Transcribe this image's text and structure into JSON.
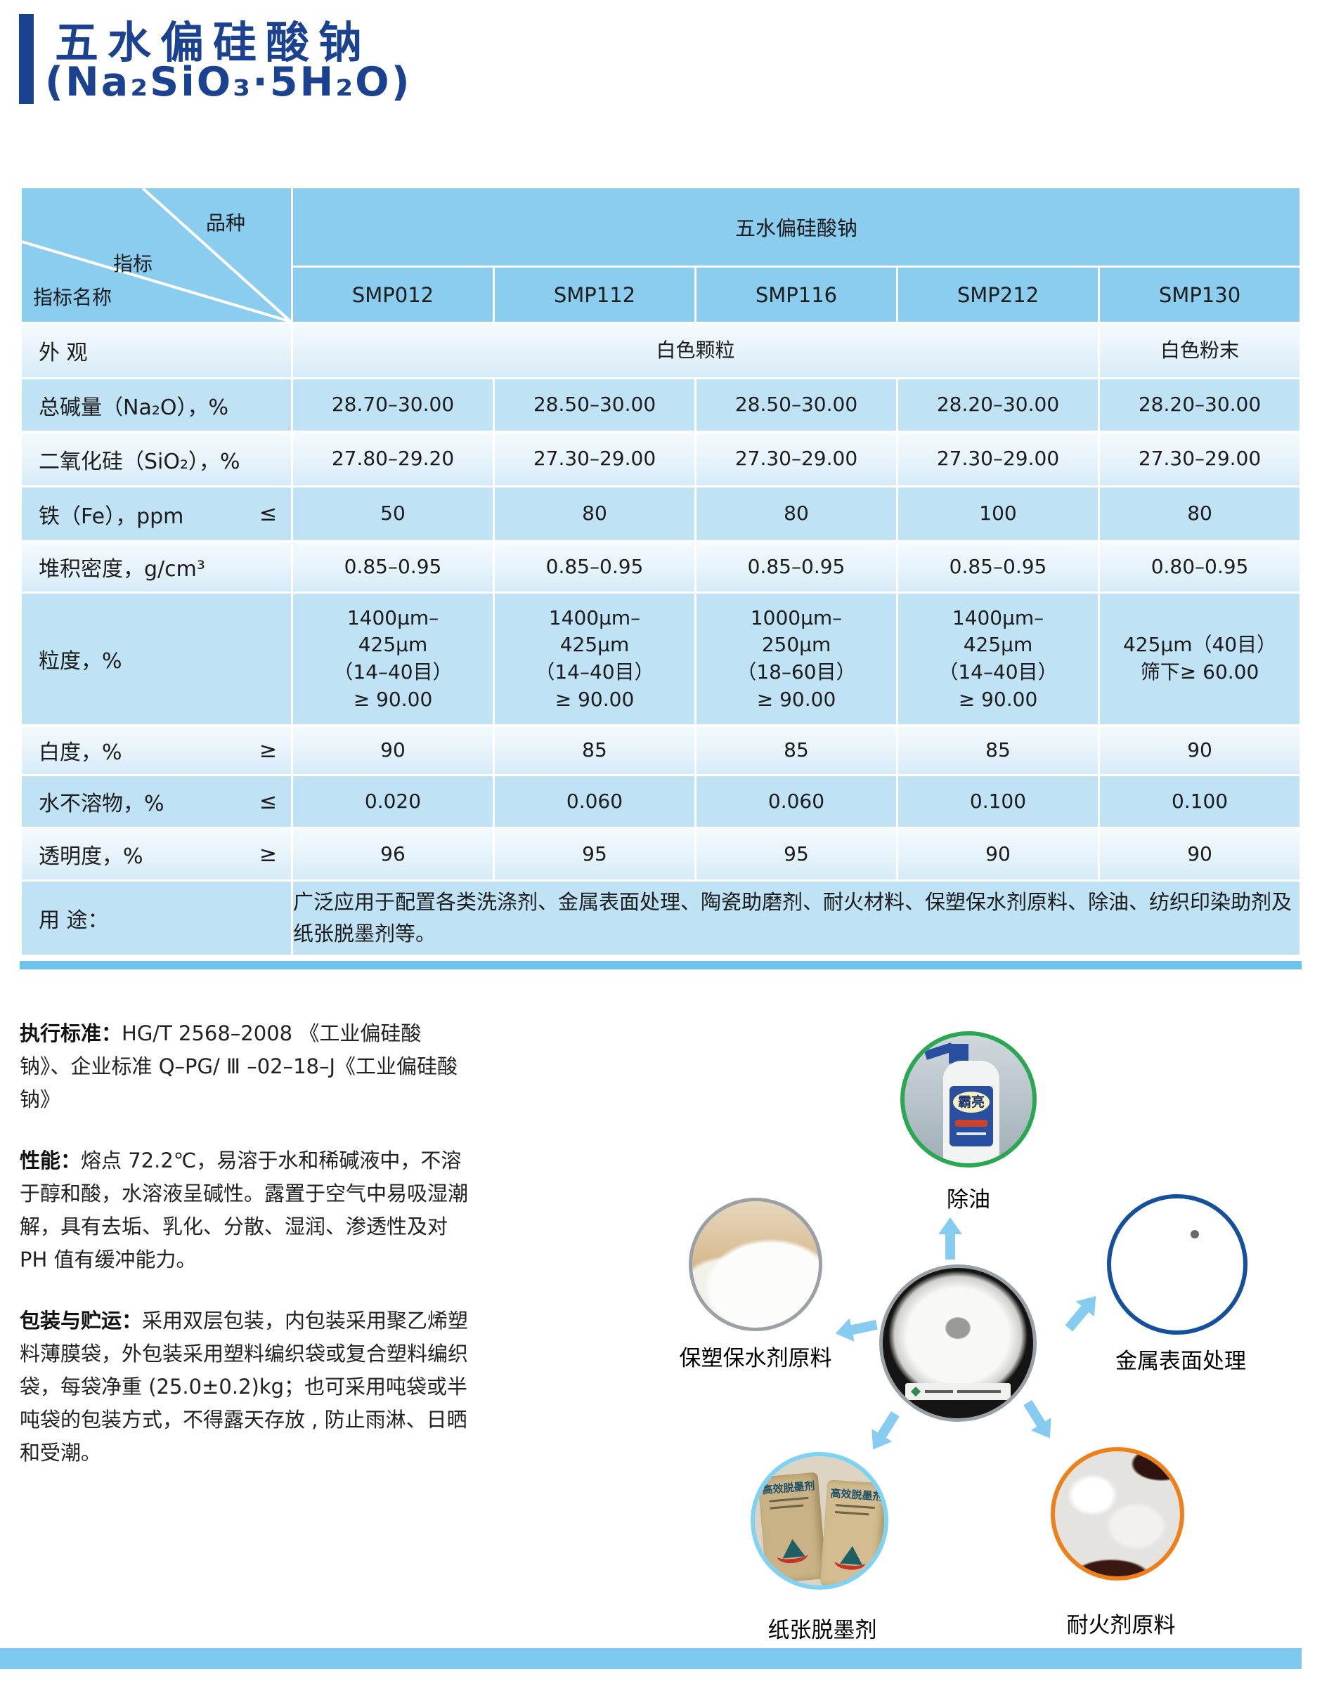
{
  "title": {
    "line1": "五水偏硅酸钠",
    "line2": "(Na₂SiO₃·5H₂O)"
  },
  "table": {
    "corner": {
      "kind": "品种",
      "index": "指标",
      "index_name": "指标名称"
    },
    "product_group": "五水偏硅酸钠",
    "columns": [
      "SMP012",
      "SMP112",
      "SMP116",
      "SMP212",
      "SMP130"
    ],
    "header_heights": [
      110,
      77
    ],
    "rows": [
      {
        "label": "外 观",
        "sym": "",
        "h": 76,
        "cells": [
          {
            "t": "白色颗粒",
            "span": 4
          },
          {
            "t": "白色粉末"
          }
        ]
      },
      {
        "label": "总碱量（Na₂O），%",
        "sym": "",
        "h": 73,
        "cells": [
          {
            "t": "28.70–30.00"
          },
          {
            "t": "28.50–30.00"
          },
          {
            "t": "28.50–30.00"
          },
          {
            "t": "28.20–30.00"
          },
          {
            "t": "28.20–30.00"
          }
        ]
      },
      {
        "label": "二氧化硅（SiO₂），%",
        "sym": "",
        "h": 75,
        "cells": [
          {
            "t": "27.80–29.20"
          },
          {
            "t": "27.30–29.00"
          },
          {
            "t": "27.30–29.00"
          },
          {
            "t": "27.30–29.00"
          },
          {
            "t": "27.30–29.00"
          }
        ]
      },
      {
        "label": "铁（Fe），ppm",
        "sym": "≤",
        "h": 75,
        "cells": [
          {
            "t": "50"
          },
          {
            "t": "80"
          },
          {
            "t": "80"
          },
          {
            "t": "100"
          },
          {
            "t": "80"
          }
        ]
      },
      {
        "label": "堆积密度，g/cm³",
        "sym": "",
        "h": 70,
        "cells": [
          {
            "t": "0.85–0.95"
          },
          {
            "t": "0.85–0.95"
          },
          {
            "t": "0.85–0.95"
          },
          {
            "t": "0.85–0.95"
          },
          {
            "t": "0.80–0.95"
          }
        ]
      },
      {
        "label": "粒度，%",
        "sym": "",
        "h": 186,
        "cells": [
          {
            "t": "1400μm–\n425μm\n（14–40目）\n≥ 90.00"
          },
          {
            "t": "1400μm–\n425μm\n（14–40目）\n≥ 90.00"
          },
          {
            "t": "1000μm–\n250μm\n（18–60目）\n≥ 90.00"
          },
          {
            "t": "1400μm–\n425μm\n（14–40目）\n≥ 90.00"
          },
          {
            "t": "425μm（40目）\n筛下≥ 60.00"
          }
        ]
      },
      {
        "label": "白度，%",
        "sym": "≥",
        "h": 68,
        "cells": [
          {
            "t": "90"
          },
          {
            "t": "85"
          },
          {
            "t": "85"
          },
          {
            "t": "85"
          },
          {
            "t": "90"
          }
        ]
      },
      {
        "label": "水不溶物，%",
        "sym": "≤",
        "h": 72,
        "cells": [
          {
            "t": "0.020"
          },
          {
            "t": "0.060"
          },
          {
            "t": "0.060"
          },
          {
            "t": "0.100"
          },
          {
            "t": "0.100"
          }
        ]
      },
      {
        "label": "透明度，%",
        "sym": "≥",
        "h": 72,
        "cells": [
          {
            "t": "96"
          },
          {
            "t": "95"
          },
          {
            "t": "95"
          },
          {
            "t": "90"
          },
          {
            "t": "90"
          }
        ]
      },
      {
        "label": "用 途：",
        "sym": "",
        "h": 104,
        "usage": true,
        "cells": [
          {
            "t": "广泛应用于配置各类洗涤剂、金属表面处理、陶瓷助磨剂、耐火材料、保塑保水剂原料、除油、纺织印染助剂及纸张脱墨剂等。",
            "span": 5
          }
        ]
      }
    ]
  },
  "paragraphs": [
    {
      "label": "执行标准：",
      "text": "HG/T 2568–2008 《工业偏硅酸钠》、企业标准 Q–PG/ Ⅲ –02–18–J《工业偏硅酸钠》"
    },
    {
      "label": "性能：",
      "text": "熔点 72.2℃，易溶于水和稀碱液中，不溶于醇和酸，水溶液呈碱性。露置于空气中易吸湿潮解，具有去垢、乳化、分散、湿润、渗透性及对 PH 值有缓冲能力。"
    },
    {
      "label": "包装与贮运：",
      "text": "采用双层包装，内包装采用聚乙烯塑料薄膜袋，外包装采用塑料编织袋或复合塑料编织袋，每袋净重 (25.0±0.2)kg；也可采用吨袋或半吨袋的包装方式，不得露天存放 , 防止雨淋、日晒和受潮。"
    }
  ],
  "diagram": {
    "nodes": [
      {
        "label": "除油"
      },
      {
        "label": "金属表面处理"
      },
      {
        "label": "保塑保水剂原料"
      },
      {
        "label": "纸张脱墨剂"
      },
      {
        "label": "耐火剂原料"
      }
    ],
    "photo_text": {
      "bottle": "霸亮",
      "bag": "高效脱墨剂"
    }
  },
  "colors": {
    "title_navy": "#1b4191",
    "header_blue": "#8bcdee",
    "row_dark": "#bfe2f5",
    "row_light_bottom": "#d6ebf8",
    "underline_bar": "#6fc2ea",
    "footer_bar": "#7ec9ef",
    "arrow_blue": "#86ccf1",
    "border_green": "#29a751",
    "border_blue": "#14509e",
    "border_lightblue": "#7ed3f4",
    "border_orange": "#ef8019",
    "border_gray": "#9aa1a6"
  }
}
